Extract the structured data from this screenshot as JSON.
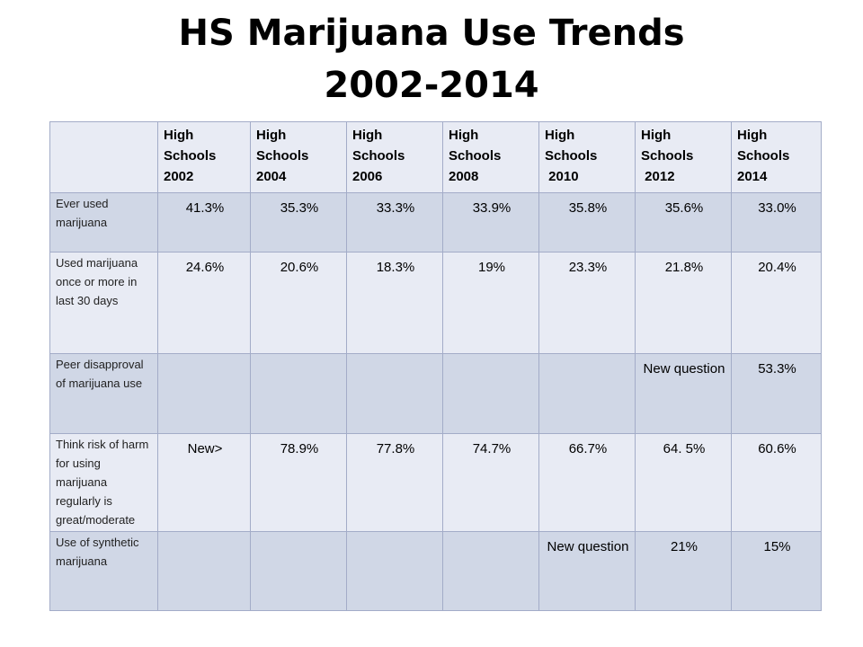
{
  "title": {
    "line1": "HS Marijuana Use Trends",
    "line2": "2002-2014"
  },
  "table": {
    "columns": [
      {
        "line1": "High",
        "line2": "Schools",
        "line3": "2002"
      },
      {
        "line1": "High",
        "line2": "Schools",
        "line3": "2004"
      },
      {
        "line1": "High",
        "line2": "Schools",
        "line3": "2006"
      },
      {
        "line1": "High",
        "line2": "Schools",
        "line3": "2008"
      },
      {
        "line1": "High",
        "line2": "Schools",
        "line3": " 2010"
      },
      {
        "line1": "High",
        "line2": "Schools",
        "line3": " 2012"
      },
      {
        "line1": "High",
        "line2": "Schools",
        "line3": "2014"
      }
    ],
    "rows": [
      {
        "label": "Ever used marijuana",
        "cells": [
          "41.3%",
          "35.3%",
          "33.3%",
          "33.9%",
          "35.8%",
          "35.6%",
          "33.0%"
        ]
      },
      {
        "label": "Used marijuana once or more in last 30 days",
        "cells": [
          "24.6%",
          "20.6%",
          "18.3%",
          "19%",
          "23.3%",
          "21.8%",
          "20.4%"
        ]
      },
      {
        "label": "Peer disapproval of marijuana use",
        "cells": [
          "",
          "",
          "",
          "",
          "",
          "New question",
          "53.3%"
        ]
      },
      {
        "label": "Think risk of harm for using marijuana regularly is great/moderate",
        "cells": [
          "New>",
          "78.9%",
          "77.8%",
          "74.7%",
          "66.7%",
          "64. 5%",
          "60.6%"
        ]
      },
      {
        "label": "Use of synthetic marijuana",
        "cells": [
          "",
          "",
          "",
          "",
          "New question",
          "21%",
          "15%"
        ]
      }
    ]
  }
}
